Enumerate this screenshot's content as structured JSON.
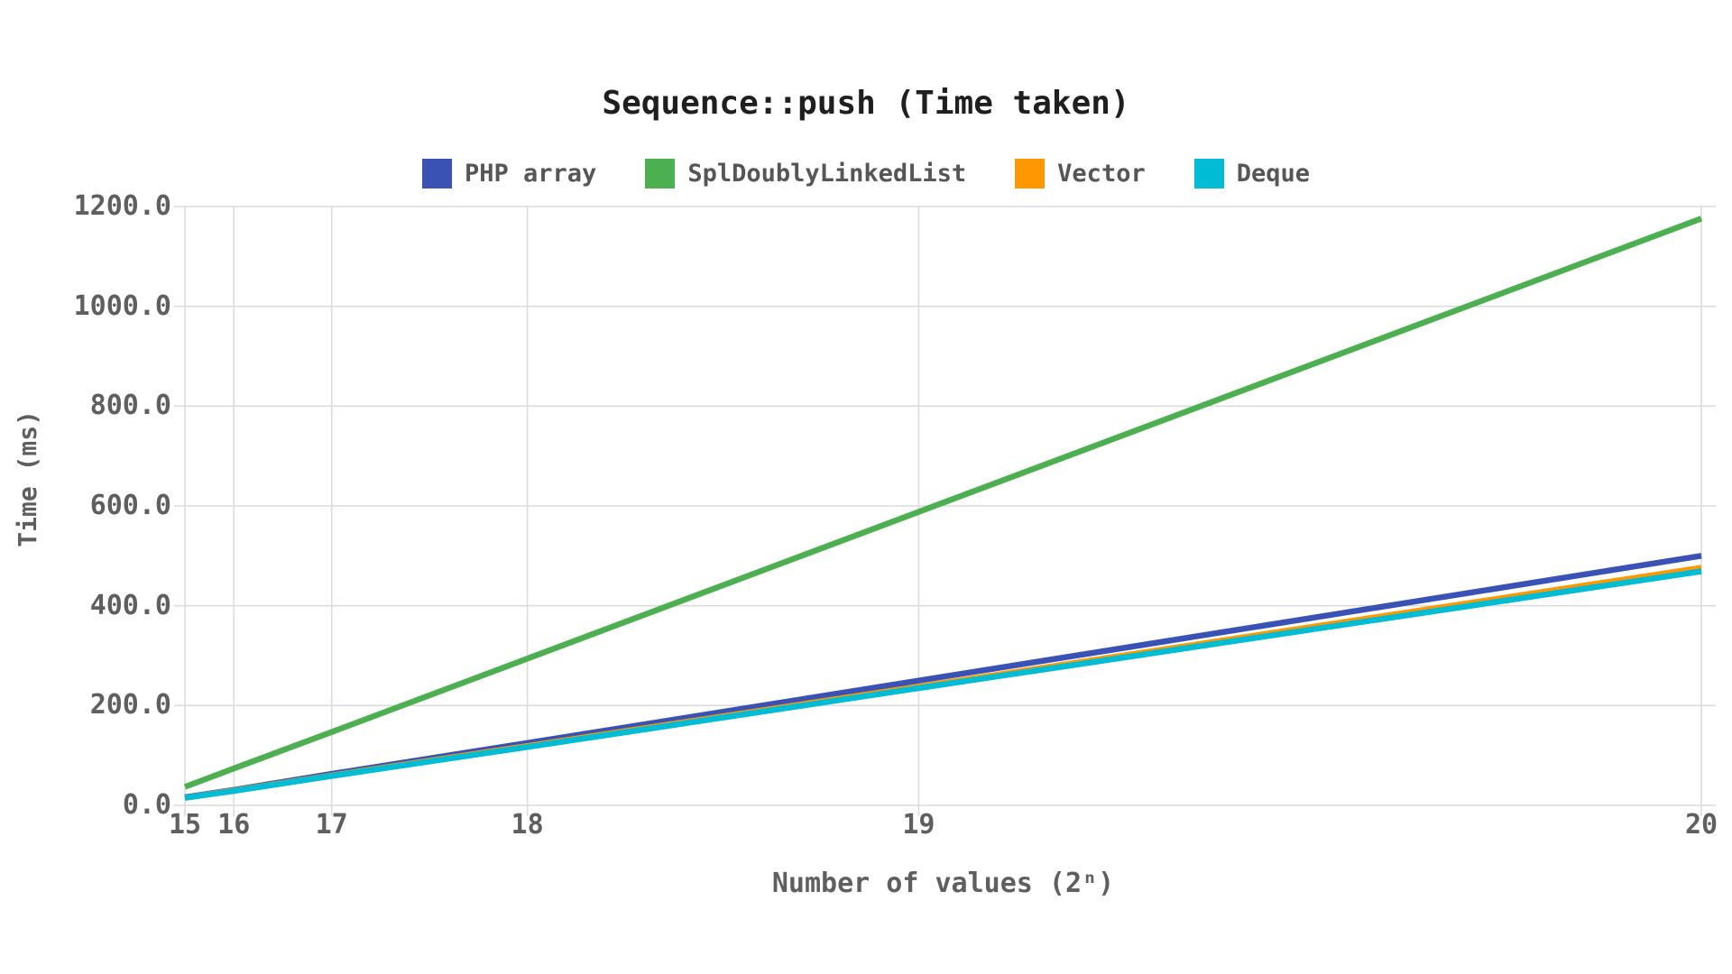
{
  "chart_data": {
    "type": "line",
    "title": "Sequence::push (Time taken)",
    "xlabel": "Number of values (2ⁿ)",
    "ylabel": "Time (ms)",
    "x": [
      15,
      16,
      17,
      18,
      19,
      20
    ],
    "x_tick_labels": [
      "15",
      "16",
      "17",
      "18",
      "19",
      "20"
    ],
    "x_scale": "linear in 2^n (tick spacing doubles each step)",
    "xlim_n": [
      15,
      20
    ],
    "y_ticks": [
      0,
      200,
      400,
      600,
      800,
      1000,
      1200
    ],
    "y_tick_labels": [
      "0.0",
      "200.0",
      "400.0",
      "600.0",
      "800.0",
      "1000.0",
      "1200.0"
    ],
    "ylim": [
      0,
      1200
    ],
    "grid": true,
    "legend_position": "top",
    "series": [
      {
        "name": "PHP array",
        "color": "#3b52b5",
        "values": [
          16,
          31,
          63,
          125,
          250,
          500
        ]
      },
      {
        "name": "SplDoublyLinkedList",
        "color": "#4caf50",
        "values": [
          37,
          74,
          147,
          294,
          588,
          1176
        ]
      },
      {
        "name": "Vector",
        "color": "#ff9800",
        "values": [
          15,
          30,
          60,
          119,
          238,
          476
        ]
      },
      {
        "name": "Deque",
        "color": "#00bcd4",
        "values": [
          15,
          29,
          59,
          117,
          235,
          469
        ]
      }
    ],
    "colors": {
      "title_text": "#1f1f1f",
      "axis_text": "#5f5f5f",
      "legend_text": "#565656",
      "grid": "#dcdcdc"
    }
  }
}
